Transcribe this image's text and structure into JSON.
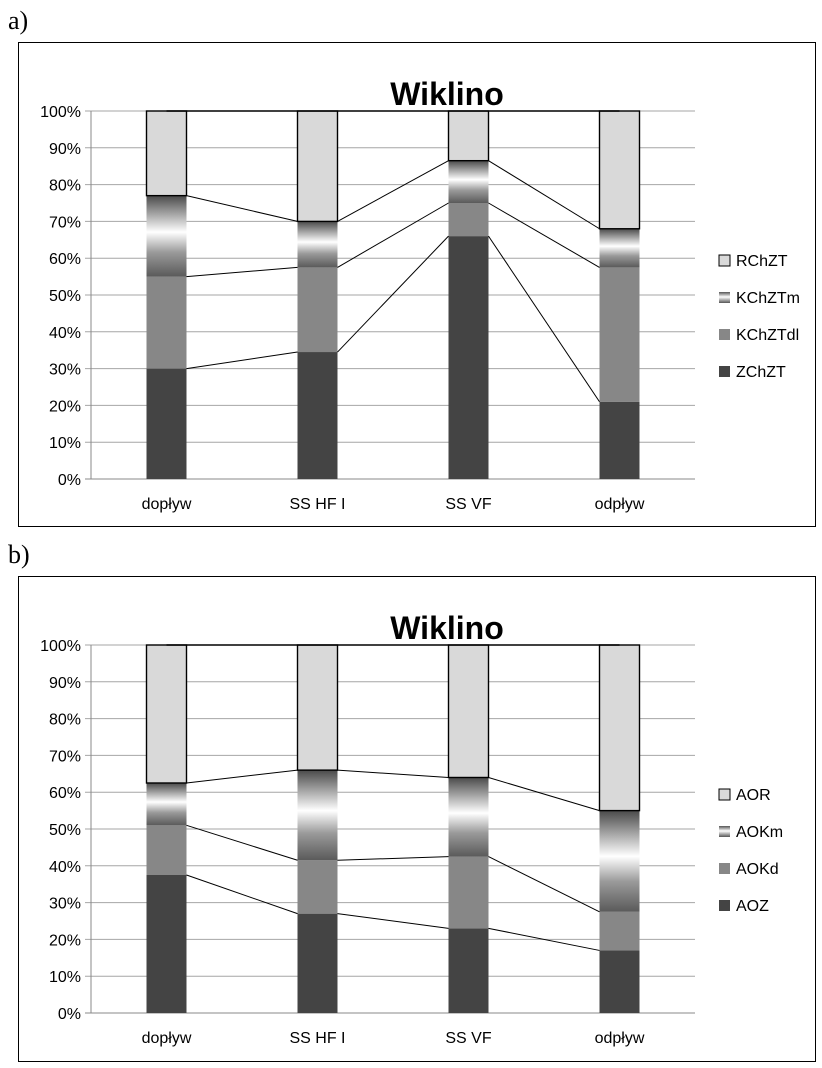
{
  "panels": [
    {
      "label": "a)"
    },
    {
      "label": "b)"
    }
  ],
  "chart_data": [
    {
      "type": "bar",
      "stacked": true,
      "title": "Wiklino",
      "categories": [
        "dopływ",
        "SS HF I",
        "SS VF",
        "odpływ"
      ],
      "yticks": [
        "0%",
        "10%",
        "20%",
        "30%",
        "40%",
        "50%",
        "60%",
        "70%",
        "80%",
        "90%",
        "100%"
      ],
      "ylim": [
        0,
        100
      ],
      "grid": true,
      "legend_position": "right",
      "series": [
        {
          "name": "ZChZT",
          "values": [
            30,
            34.5,
            66,
            21
          ],
          "color": "#444444",
          "pattern": "solid"
        },
        {
          "name": "KChZTdl",
          "values": [
            25,
            23,
            9,
            36.5
          ],
          "color": "#878787",
          "pattern": "solid"
        },
        {
          "name": "KChZTm",
          "values": [
            22,
            12.5,
            11.5,
            10.5
          ],
          "color": "#7a7a7a",
          "pattern": "gradient"
        },
        {
          "name": "RChZT",
          "values": [
            23,
            30,
            13.5,
            32
          ],
          "color": "#d9d9d9",
          "pattern": "solid"
        }
      ]
    },
    {
      "type": "bar",
      "stacked": true,
      "title": "Wiklino",
      "categories": [
        "dopływ",
        "SS HF I",
        "SS VF",
        "odpływ"
      ],
      "yticks": [
        "0%",
        "10%",
        "20%",
        "30%",
        "40%",
        "50%",
        "60%",
        "70%",
        "80%",
        "90%",
        "100%"
      ],
      "ylim": [
        0,
        100
      ],
      "grid": true,
      "legend_position": "right",
      "series": [
        {
          "name": "AOZ",
          "values": [
            37.5,
            27,
            23,
            17
          ],
          "color": "#444444",
          "pattern": "solid"
        },
        {
          "name": "AOKd",
          "values": [
            13.5,
            14.5,
            19.5,
            10.5
          ],
          "color": "#878787",
          "pattern": "solid"
        },
        {
          "name": "AOKm",
          "values": [
            11.5,
            24.5,
            21.5,
            27.5
          ],
          "color": "#7a7a7a",
          "pattern": "gradient"
        },
        {
          "name": "AOR",
          "values": [
            37.5,
            34,
            36,
            45
          ],
          "color": "#d9d9d9",
          "pattern": "solid"
        }
      ]
    }
  ]
}
